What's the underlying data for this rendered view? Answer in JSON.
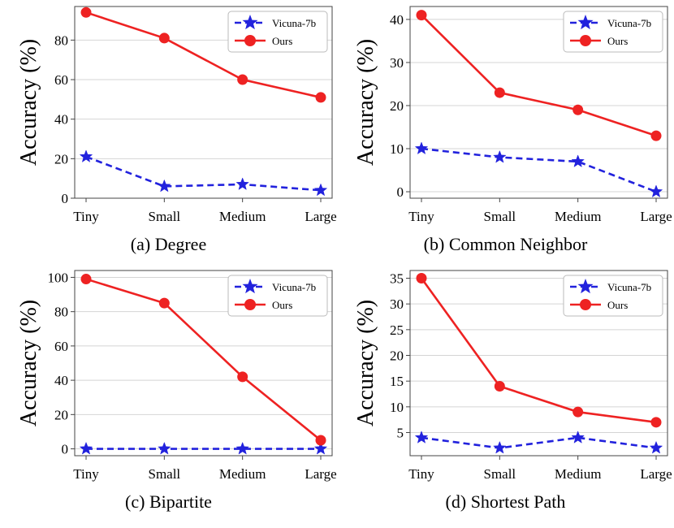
{
  "chart_data": [
    {
      "type": "line",
      "caption": "(a) Degree",
      "categories": [
        "Tiny",
        "Small",
        "Medium",
        "Large"
      ],
      "ylabel": "Accuracy (%)",
      "xlabel": "",
      "ylim": [
        0,
        97
      ],
      "yticks": [
        0,
        20,
        40,
        60,
        80
      ],
      "legend_position": "top-right",
      "grid": "horizontal",
      "series": [
        {
          "name": "Vicuna-7b",
          "values": [
            21,
            6,
            7,
            4
          ],
          "color": "#2222dd",
          "style": "dashed",
          "marker": "star"
        },
        {
          "name": "Ours",
          "values": [
            94,
            81,
            60,
            51
          ],
          "color": "#ee2222",
          "style": "solid",
          "marker": "circle"
        }
      ]
    },
    {
      "type": "line",
      "caption": "(b) Common Neighbor",
      "categories": [
        "Tiny",
        "Small",
        "Medium",
        "Large"
      ],
      "ylabel": "Accuracy (%)",
      "xlabel": "",
      "ylim": [
        -1.5,
        43
      ],
      "yticks": [
        0,
        10,
        20,
        30,
        40
      ],
      "legend_position": "top-right",
      "grid": "horizontal",
      "series": [
        {
          "name": "Vicuna-7b",
          "values": [
            10,
            8,
            7,
            0
          ],
          "color": "#2222dd",
          "style": "dashed",
          "marker": "star"
        },
        {
          "name": "Ours",
          "values": [
            41,
            23,
            19,
            13
          ],
          "color": "#ee2222",
          "style": "solid",
          "marker": "circle"
        }
      ]
    },
    {
      "type": "line",
      "caption": "(c) Bipartite",
      "categories": [
        "Tiny",
        "Small",
        "Medium",
        "Large"
      ],
      "ylabel": "Accuracy (%)",
      "xlabel": "",
      "ylim": [
        -4,
        104
      ],
      "yticks": [
        0,
        20,
        40,
        60,
        80,
        100
      ],
      "legend_position": "top-right",
      "grid": "horizontal",
      "series": [
        {
          "name": "Vicuna-7b",
          "values": [
            0,
            0,
            0,
            0
          ],
          "color": "#2222dd",
          "style": "dashed",
          "marker": "star"
        },
        {
          "name": "Ours",
          "values": [
            99,
            85,
            42,
            5
          ],
          "color": "#ee2222",
          "style": "solid",
          "marker": "circle"
        }
      ]
    },
    {
      "type": "line",
      "caption": "(d) Shortest Path",
      "categories": [
        "Tiny",
        "Small",
        "Medium",
        "Large"
      ],
      "ylabel": "Accuracy (%)",
      "xlabel": "",
      "ylim": [
        0.5,
        36.5
      ],
      "yticks": [
        5,
        10,
        15,
        20,
        25,
        30,
        35
      ],
      "legend_position": "top-right",
      "grid": "horizontal",
      "series": [
        {
          "name": "Vicuna-7b",
          "values": [
            4,
            2,
            4,
            2
          ],
          "color": "#2222dd",
          "style": "dashed",
          "marker": "star"
        },
        {
          "name": "Ours",
          "values": [
            35,
            14,
            9,
            7
          ],
          "color": "#ee2222",
          "style": "solid",
          "marker": "circle"
        }
      ]
    }
  ]
}
